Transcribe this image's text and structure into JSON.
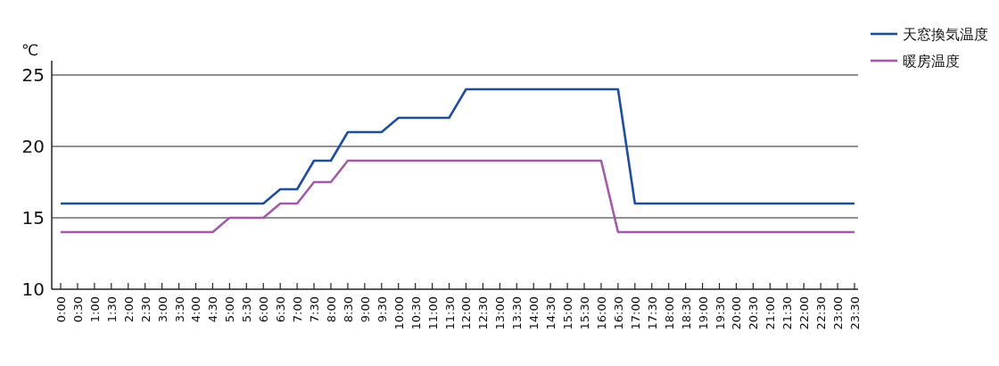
{
  "chart_data": {
    "type": "line",
    "ylabel": "℃",
    "categories": [
      "0:00",
      "0:30",
      "1:00",
      "1:30",
      "2:00",
      "2:30",
      "3:00",
      "3:30",
      "4:00",
      "4:30",
      "5:00",
      "5:30",
      "6:00",
      "6:30",
      "7:00",
      "7:30",
      "8:00",
      "8:30",
      "9:00",
      "9:30",
      "10:00",
      "10:30",
      "11:00",
      "11:30",
      "12:00",
      "12:30",
      "13:00",
      "13:30",
      "14:00",
      "14:30",
      "15:00",
      "15:30",
      "16:00",
      "16:30",
      "17:00",
      "17:30",
      "18:00",
      "18:30",
      "19:00",
      "19:30",
      "20:00",
      "20:30",
      "21:00",
      "21:30",
      "22:00",
      "22:30",
      "23:00",
      "23:30"
    ],
    "series": [
      {
        "name": "天窓換気温度",
        "color": "#1f4e9c",
        "values": [
          16,
          16,
          16,
          16,
          16,
          16,
          16,
          16,
          16,
          16,
          16,
          16,
          16,
          17,
          17,
          19,
          19,
          21,
          21,
          21,
          22,
          22,
          22,
          22,
          24,
          24,
          24,
          24,
          24,
          24,
          24,
          24,
          24,
          24,
          16,
          16,
          16,
          16,
          16,
          16,
          16,
          16,
          16,
          16,
          16,
          16,
          16,
          16
        ]
      },
      {
        "name": "暖房温度",
        "color": "#a35aa8",
        "values": [
          14,
          14,
          14,
          14,
          14,
          14,
          14,
          14,
          14,
          14,
          15,
          15,
          15,
          16,
          16,
          17.5,
          17.5,
          19,
          19,
          19,
          19,
          19,
          19,
          19,
          19,
          19,
          19,
          19,
          19,
          19,
          19,
          19,
          19,
          14,
          14,
          14,
          14,
          14,
          14,
          14,
          14,
          14,
          14,
          14,
          14,
          14,
          14,
          14
        ]
      }
    ],
    "ylim": [
      10,
      26
    ],
    "yticks": [
      10,
      15,
      20,
      25
    ],
    "grid": "y",
    "legend": "top right",
    "marker": "none",
    "line_style": "solid"
  }
}
